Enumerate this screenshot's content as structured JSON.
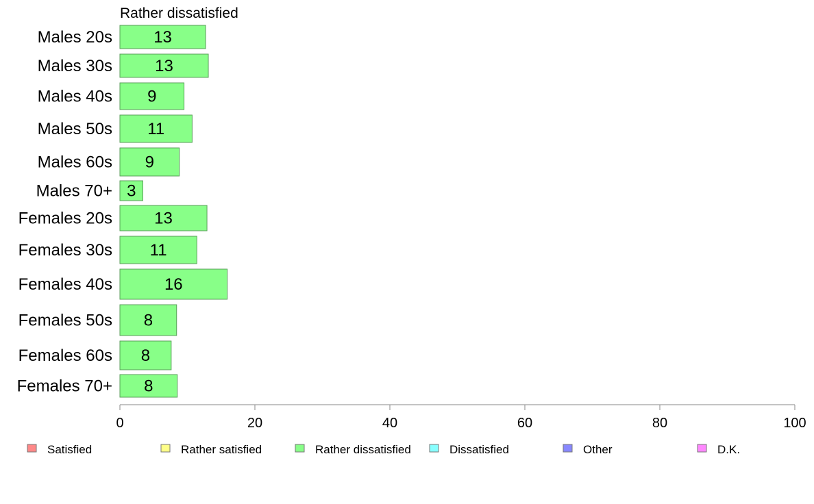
{
  "chart_data": {
    "type": "bar",
    "orientation": "horizontal",
    "title": "Rather dissatisfied",
    "categories": [
      "Males 20s",
      "Males 30s",
      "Males 40s",
      "Males 50s",
      "Males 60s",
      "Males 70+",
      "Females 20s",
      "Females 30s",
      "Females 40s",
      "Females 50s",
      "Females 60s",
      "Females 70+"
    ],
    "values": [
      12.7,
      13.1,
      9.5,
      10.7,
      8.8,
      3.4,
      12.9,
      11.4,
      15.9,
      8.4,
      7.6,
      8.5
    ],
    "value_labels": [
      "13",
      "13",
      "9",
      "11",
      "9",
      "3",
      "13",
      "11",
      "16",
      "8",
      "8",
      "8"
    ],
    "bar_color": "#88ff88",
    "bar_stroke": "#5a9e5a",
    "xlim": [
      0,
      100
    ],
    "xticks": [
      0,
      20,
      40,
      60,
      80,
      100
    ],
    "grid": false,
    "legend": {
      "placement": "bottom",
      "items": [
        {
          "label": "Satisfied",
          "color": "#ff8888"
        },
        {
          "label": "Rather satisfied",
          "color": "#ffff88"
        },
        {
          "label": "Rather dissatisfied",
          "color": "#88ff88"
        },
        {
          "label": "Dissatisfied",
          "color": "#88ffff"
        },
        {
          "label": "Other",
          "color": "#8888ff"
        },
        {
          "label": "D.K.",
          "color": "#ff88ff"
        }
      ]
    }
  }
}
